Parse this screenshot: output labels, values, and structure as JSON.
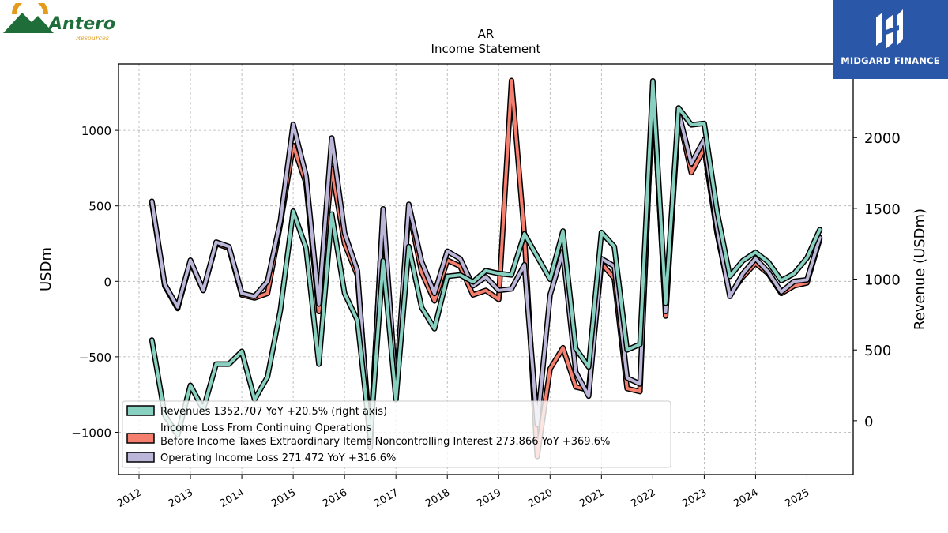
{
  "brand_left": {
    "name": "Antero",
    "sub": "Resources"
  },
  "brand_right": {
    "name": "MIDGARD FINANCE"
  },
  "chart_data": {
    "type": "line",
    "title": "AR",
    "subtitle": "Income Statement",
    "ylabel_left": "USDm",
    "ylabel_right": "Revenue (USDm)",
    "ylim_left": [
      -1280,
      1440
    ],
    "ylim_right": [
      -380,
      2520
    ],
    "yticks_left": [
      -1000,
      -500,
      0,
      500,
      1000
    ],
    "yticks_left_labels": [
      "−1000",
      "−500",
      "0",
      "500",
      "1000"
    ],
    "yticks_right": [
      0,
      500,
      1000,
      1500,
      2000
    ],
    "xlim": [
      2011.6,
      2025.9
    ],
    "xticks": [
      2012,
      2013,
      2014,
      2015,
      2016,
      2017,
      2018,
      2019,
      2020,
      2021,
      2022,
      2023,
      2024,
      2025
    ],
    "grid": true,
    "legend_placement": "lower-left",
    "x": [
      2012.25,
      2012.5,
      2012.75,
      2013.0,
      2013.25,
      2013.5,
      2013.75,
      2014.0,
      2014.25,
      2014.5,
      2014.75,
      2015.0,
      2015.25,
      2015.5,
      2015.75,
      2016.0,
      2016.25,
      2016.5,
      2016.75,
      2017.0,
      2017.25,
      2017.5,
      2017.75,
      2018.0,
      2018.25,
      2018.5,
      2018.75,
      2019.0,
      2019.25,
      2019.5,
      2019.75,
      2020.0,
      2020.25,
      2020.5,
      2020.75,
      2021.0,
      2021.25,
      2021.5,
      2021.75,
      2022.0,
      2022.25,
      2022.5,
      2022.75,
      2023.0,
      2023.25,
      2023.5,
      2023.75,
      2024.0,
      2024.25,
      2024.5,
      2024.75,
      2025.0,
      2025.25
    ],
    "series": [
      {
        "name": "Revenues  1352.707 YoY +20.5% (right axis)",
        "axis": "right",
        "color": "#88d1c0",
        "values": [
          570,
          40,
          -100,
          250,
          80,
          400,
          400,
          490,
          150,
          310,
          780,
          1480,
          1220,
          400,
          1460,
          900,
          710,
          -120,
          1130,
          150,
          1230,
          800,
          650,
          1020,
          1030,
          980,
          1060,
          1040,
          1030,
          1320,
          1160,
          1000,
          1340,
          510,
          380,
          1330,
          1230,
          500,
          540,
          2400,
          830,
          2210,
          2090,
          2100,
          1480,
          1020,
          1130,
          1190,
          1120,
          990,
          1040,
          1150,
          1350
        ]
      },
      {
        "name": "Income Loss From Continuing Operations\nBefore Income Taxes Extraordinary Items Noncontrolling Interest  273.866 YoY +369.6%",
        "axis": "left",
        "color": "#f47f6e",
        "values": [
          520,
          -30,
          -180,
          130,
          -60,
          250,
          220,
          -90,
          -110,
          -80,
          380,
          900,
          650,
          -200,
          750,
          250,
          40,
          -1050,
          460,
          -780,
          480,
          60,
          -130,
          140,
          100,
          -90,
          -60,
          -120,
          1330,
          300,
          -1160,
          -580,
          -440,
          -700,
          -720,
          120,
          20,
          -710,
          -730,
          1300,
          -230,
          1100,
          720,
          880,
          320,
          -90,
          30,
          120,
          50,
          -80,
          -30,
          -10,
          280
        ]
      },
      {
        "name": "Operating Income Loss  271.472 YoY +316.6%",
        "axis": "left",
        "color": "#bcb7d8",
        "values": [
          530,
          -20,
          -170,
          140,
          -60,
          260,
          230,
          -80,
          -100,
          0,
          400,
          1040,
          700,
          -150,
          950,
          320,
          70,
          -1100,
          480,
          -720,
          510,
          130,
          -80,
          200,
          150,
          -30,
          30,
          -60,
          -50,
          110,
          -950,
          -90,
          200,
          -600,
          -760,
          150,
          100,
          -640,
          -680,
          1280,
          -200,
          1120,
          780,
          940,
          350,
          -100,
          50,
          150,
          60,
          -70,
          0,
          10,
          290
        ]
      }
    ],
    "legend_labels": [
      "Revenues  1352.707 YoY +20.5% (right axis)",
      "Income Loss From Continuing Operations",
      "Before Income Taxes Extraordinary Items Noncontrolling Interest  273.866 YoY +369.6%",
      "Operating Income Loss  271.472 YoY +316.6%"
    ]
  }
}
